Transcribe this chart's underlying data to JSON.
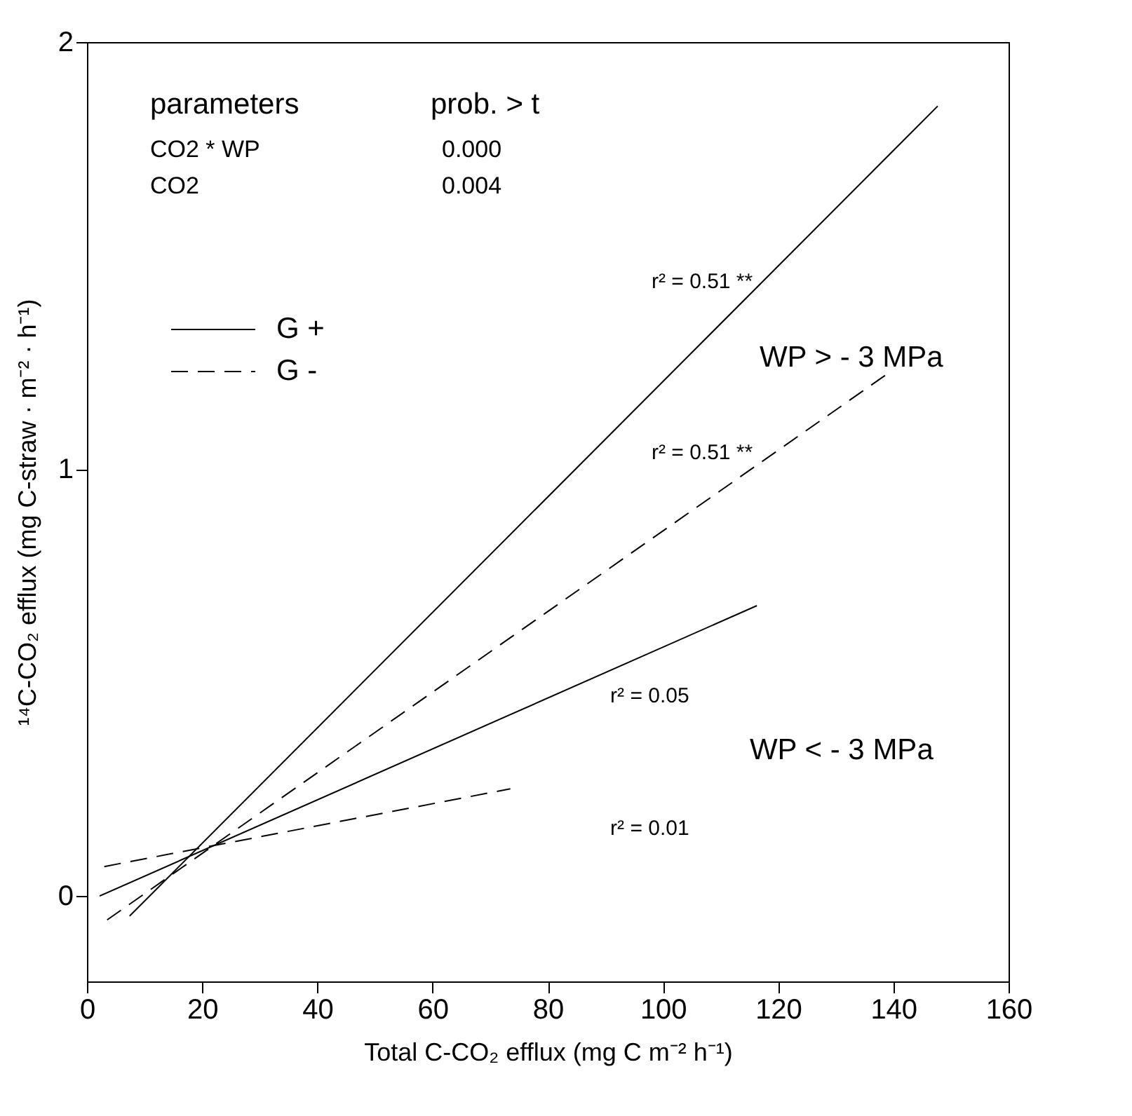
{
  "chart_data": {
    "type": "line",
    "xlabel": "Total C-CO₂ efflux (mg C m⁻² h⁻¹)",
    "ylabel": "¹⁴C-CO₂ efflux (mg C-straw · m⁻² · h⁻¹)",
    "xlim": [
      0,
      160
    ],
    "xticks": [
      0,
      20,
      40,
      60,
      80,
      100,
      120,
      140,
      160
    ],
    "ylim": [
      -0.2,
      2
    ],
    "yticks": [
      0,
      1,
      2
    ],
    "grid": false,
    "legend": "top left",
    "marker": "none",
    "series": [
      {
        "name": "G +",
        "color": "#000000",
        "line_style": "solid",
        "x": [
          7.4,
          147.7
        ],
        "values": [
          -0.047,
          1.85
        ]
      },
      {
        "name": "G -",
        "color": "#000000",
        "line_style": "dashed",
        "x": [
          3.5,
          139.7
        ],
        "values": [
          -0.056,
          1.23
        ]
      },
      {
        "color": "#000000",
        "line_style": "solid",
        "x": [
          2.2,
          116.3
        ],
        "values": [
          0.0,
          0.68
        ]
      },
      {
        "color": "#000000",
        "line_style": "dashed",
        "x": [
          3,
          73.5
        ],
        "values": [
          0.069,
          0.251
        ]
      }
    ],
    "annotations": [
      "parameters",
      "prob. > t",
      "CO2 * WP",
      "0.000",
      "CO2",
      "0.004",
      "r² = 0.51 **",
      "r² = 0.51 **",
      "r² = 0.05",
      "r² = 0.01",
      "WP > - 3 MPa",
      "WP < - 3 MPa"
    ]
  }
}
